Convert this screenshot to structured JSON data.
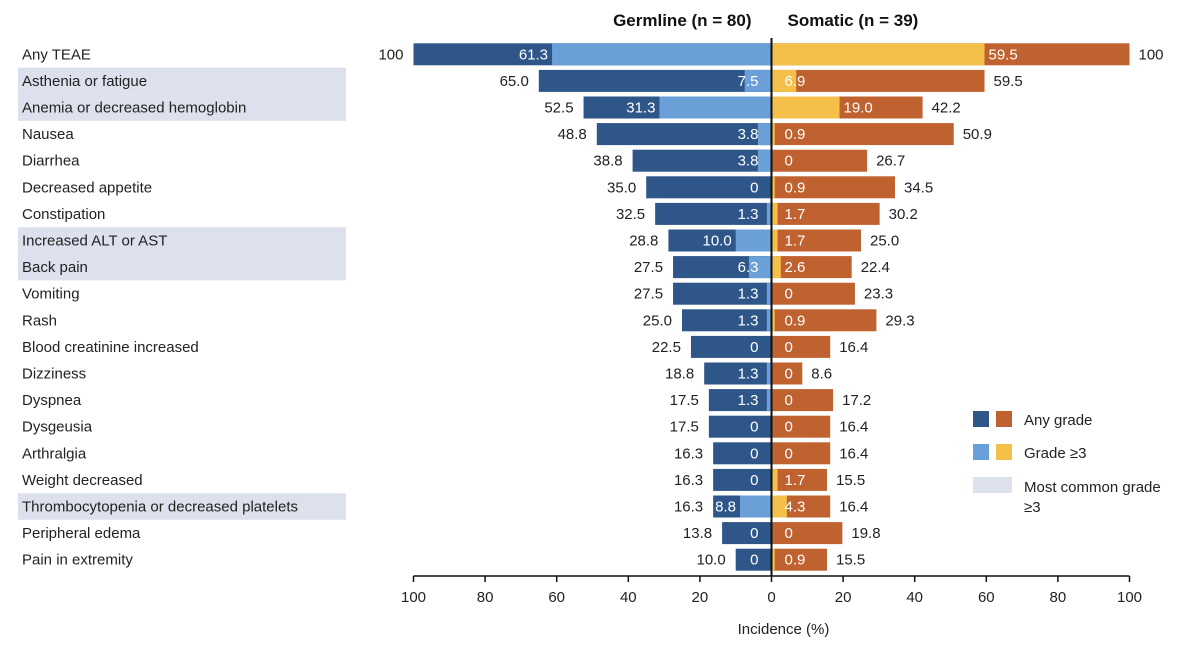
{
  "chart_data": {
    "type": "bar",
    "orientation": "diverging-horizontal",
    "groups": [
      {
        "title": "Germline (n = 80)",
        "side": "left"
      },
      {
        "title": "Somatic (n = 39)",
        "side": "right"
      }
    ],
    "categories": [
      "Any TEAE",
      "Asthenia or fatigue",
      "Anemia or decreased hemoglobin",
      "Nausea",
      "Diarrhea",
      "Decreased appetite",
      "Constipation",
      "Increased ALT or AST",
      "Back pain",
      "Vomiting",
      "Rash",
      "Blood creatinine increased",
      "Dizziness",
      "Dyspnea",
      "Dysgeusia",
      "Arthralgia",
      "Weight decreased",
      "Thrombocytopenia or decreased platelets",
      "Peripheral edema",
      "Pain in extremity"
    ],
    "highlighted": [
      false,
      true,
      true,
      false,
      false,
      false,
      false,
      true,
      true,
      false,
      false,
      false,
      false,
      false,
      false,
      false,
      false,
      true,
      false,
      false
    ],
    "series": [
      {
        "name": "Any grade",
        "group": "Germline",
        "values": [
          100,
          65.0,
          52.5,
          48.8,
          38.8,
          35.0,
          32.5,
          28.8,
          27.5,
          27.5,
          25.0,
          22.5,
          18.8,
          17.5,
          17.5,
          16.3,
          16.3,
          16.3,
          13.8,
          10.0
        ],
        "labels": [
          "100",
          "65.0",
          "52.5",
          "48.8",
          "38.8",
          "35.0",
          "32.5",
          "28.8",
          "27.5",
          "27.5",
          "25.0",
          "22.5",
          "18.8",
          "17.5",
          "17.5",
          "16.3",
          "16.3",
          "16.3",
          "13.8",
          "10.0"
        ]
      },
      {
        "name": "Grade ≥3",
        "group": "Germline",
        "values": [
          61.3,
          7.5,
          31.3,
          3.8,
          3.8,
          0,
          1.3,
          10.0,
          6.3,
          1.3,
          1.3,
          0,
          1.3,
          1.3,
          0,
          0,
          0,
          8.8,
          0,
          0
        ],
        "labels": [
          "61.3",
          "7.5",
          "31.3",
          "3.8",
          "3.8",
          "0",
          "1.3",
          "10.0",
          "6.3",
          "1.3",
          "1.3",
          "0",
          "1.3",
          "1.3",
          "0",
          "0",
          "0",
          "8.8",
          "0",
          "0"
        ]
      },
      {
        "name": "Any grade",
        "group": "Somatic",
        "values": [
          100,
          59.5,
          42.2,
          50.9,
          26.7,
          34.5,
          30.2,
          25.0,
          22.4,
          23.3,
          29.3,
          16.4,
          8.6,
          17.2,
          16.4,
          16.4,
          15.5,
          16.4,
          19.8,
          15.5
        ],
        "labels": [
          "100",
          "59.5",
          "42.2",
          "50.9",
          "26.7",
          "34.5",
          "30.2",
          "25.0",
          "22.4",
          "23.3",
          "29.3",
          "16.4",
          "8.6",
          "17.2",
          "16.4",
          "16.4",
          "15.5",
          "16.4",
          "19.8",
          "15.5"
        ]
      },
      {
        "name": "Grade ≥3",
        "group": "Somatic",
        "values": [
          59.5,
          6.9,
          19.0,
          0.9,
          0,
          0.9,
          1.7,
          1.7,
          2.6,
          0,
          0.9,
          0,
          0,
          0,
          0,
          0,
          1.7,
          4.3,
          0,
          0.9
        ],
        "labels": [
          "59.5",
          "6.9",
          "19.0",
          "0.9",
          "0",
          "0.9",
          "1.7",
          "1.7",
          "2.6",
          "0",
          "0.9",
          "0",
          "0",
          "0",
          "0",
          "0",
          "1.7",
          "4.3",
          "0",
          "0.9"
        ]
      }
    ],
    "xlabel": "Incidence (%)",
    "xlim": [
      -100,
      100
    ],
    "xticks": [
      "100",
      "80",
      "60",
      "40",
      "20",
      "0",
      "20",
      "40",
      "60",
      "80",
      "100"
    ],
    "legend": {
      "position": "right",
      "entries": [
        {
          "label": "Any grade",
          "colors": [
            "#2e5688",
            "#c0622f"
          ]
        },
        {
          "label": "Grade ≥3",
          "colors": [
            "#6a9fd8",
            "#f4c04a"
          ]
        },
        {
          "label": "Most common grade ≥3",
          "colors": [
            "#dde1ee"
          ]
        }
      ]
    },
    "colors": {
      "germline_any": "#2e5688",
      "germline_g3": "#6a9fd8",
      "somatic_any": "#c0622f",
      "somatic_g3": "#f4c04a",
      "highlight": "#dde1ee",
      "axis": "#111111"
    },
    "grid": false
  }
}
